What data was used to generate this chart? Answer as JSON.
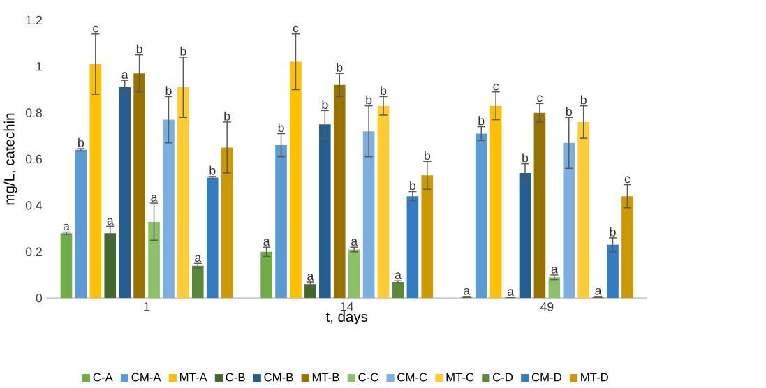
{
  "chart_data": {
    "type": "bar",
    "xlabel": "t, days",
    "ylabel": "mg/L, catechin",
    "categories": [
      "1",
      "14",
      "49"
    ],
    "ylim": [
      0,
      1.2
    ],
    "yticks": [
      0,
      0.2,
      0.4,
      0.6,
      0.8,
      1,
      1.2
    ],
    "legend": "bottom",
    "series": [
      {
        "name": "C-A",
        "color": "#70ad47",
        "values": [
          0.28,
          0.2,
          0.005
        ],
        "errors": [
          0.005,
          0.02,
          0.002
        ],
        "value_labels": [
          "a",
          "a",
          "a"
        ]
      },
      {
        "name": "CM-A",
        "color": "#5b9bd5",
        "values": [
          0.64,
          0.66,
          0.71
        ],
        "errors": [
          0.005,
          0.05,
          0.03
        ],
        "value_labels": [
          "b",
          "b",
          "b"
        ]
      },
      {
        "name": "MT-A",
        "color": "#ffc000",
        "values": [
          1.01,
          1.02,
          0.83
        ],
        "errors": [
          0.13,
          0.12,
          0.06
        ],
        "value_labels": [
          "c",
          "c",
          "c"
        ]
      },
      {
        "name": "C-B",
        "color": "#43682b",
        "values": [
          0.28,
          0.06,
          0.002
        ],
        "errors": [
          0.03,
          0.01,
          0.001
        ],
        "value_labels": [
          "a",
          "a",
          "a"
        ]
      },
      {
        "name": "CM-B",
        "color": "#255e91",
        "values": [
          0.91,
          0.75,
          0.54
        ],
        "errors": [
          0.03,
          0.06,
          0.04
        ],
        "value_labels": [
          "a",
          "b",
          "b"
        ]
      },
      {
        "name": "MT-B",
        "color": "#997300",
        "values": [
          0.97,
          0.92,
          0.8
        ],
        "errors": [
          0.08,
          0.05,
          0.04
        ],
        "value_labels": [
          "b",
          "b",
          "c"
        ]
      },
      {
        "name": "C-C",
        "color": "#8cc168",
        "values": [
          0.33,
          0.21,
          0.09
        ],
        "errors": [
          0.08,
          0.01,
          0.01
        ],
        "value_labels": [
          "a",
          "a",
          "a"
        ]
      },
      {
        "name": "CM-C",
        "color": "#7cafdd",
        "values": [
          0.77,
          0.72,
          0.67
        ],
        "errors": [
          0.1,
          0.11,
          0.11
        ],
        "value_labels": [
          "b",
          "b",
          "b"
        ]
      },
      {
        "name": "MT-C",
        "color": "#ffcd33",
        "values": [
          0.91,
          0.83,
          0.76
        ],
        "errors": [
          0.13,
          0.04,
          0.07
        ],
        "value_labels": [
          "b",
          "b",
          "b"
        ]
      },
      {
        "name": "C-D",
        "color": "#5a8a39",
        "values": [
          0.14,
          0.07,
          0.005
        ],
        "errors": [
          0.01,
          0.005,
          0.002
        ],
        "value_labels": [
          "a",
          "a",
          "a"
        ]
      },
      {
        "name": "CM-D",
        "color": "#327dc2",
        "values": [
          0.52,
          0.44,
          0.23
        ],
        "errors": [
          0.005,
          0.02,
          0.03
        ],
        "value_labels": [
          "b",
          "b",
          "b"
        ]
      },
      {
        "name": "MT-D",
        "color": "#cc9a00",
        "values": [
          0.65,
          0.53,
          0.44
        ],
        "errors": [
          0.11,
          0.06,
          0.05
        ],
        "value_labels": [
          "b",
          "b",
          "c"
        ]
      }
    ]
  }
}
